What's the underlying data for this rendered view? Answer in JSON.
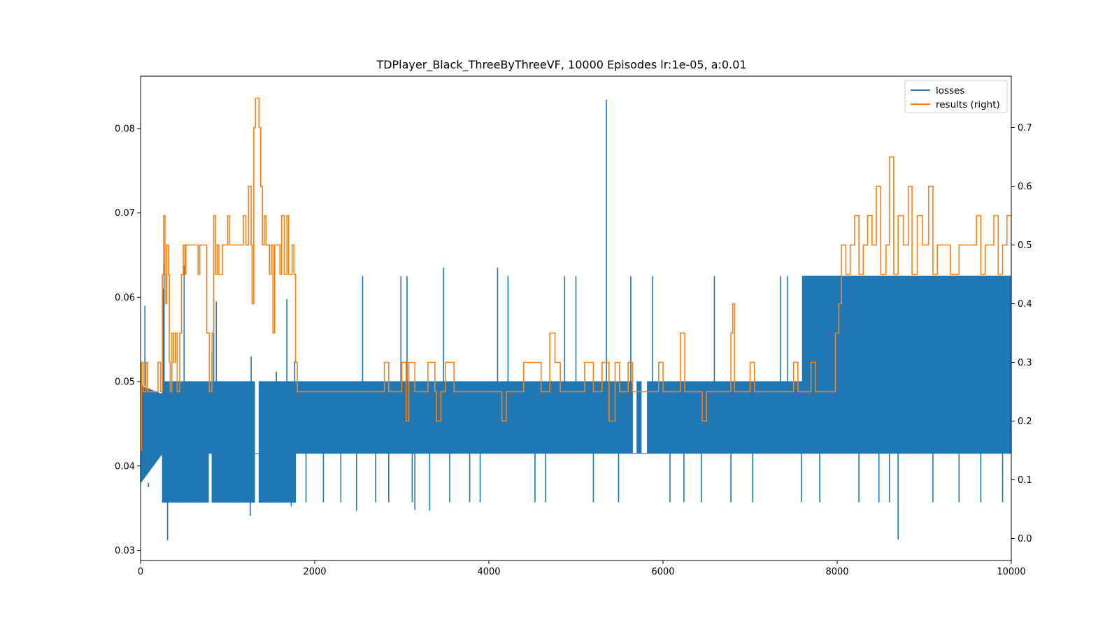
{
  "chart_data": {
    "type": "line",
    "title": "TDPlayer_Black_ThreeByThreeVF, 10000 Episodes lr:1e-05, a:0.01",
    "xlabel": "",
    "ylabel": "",
    "xlim": [
      0,
      10000
    ],
    "ylim_left": [
      0.0288,
      0.0862
    ],
    "ylim_right": [
      -0.0375,
      0.7875
    ],
    "x_ticks": [
      0,
      2000,
      4000,
      6000,
      8000,
      10000
    ],
    "y_ticks_left": [
      0.03,
      0.04,
      0.05,
      0.06,
      0.07,
      0.08
    ],
    "y_ticks_right": [
      0.0,
      0.1,
      0.2,
      0.3,
      0.4,
      0.5,
      0.6,
      0.7
    ],
    "grid": false,
    "legend_position": "upper right",
    "series": [
      {
        "name": "losses",
        "axis": "left",
        "color": "#1f77b4",
        "style": "dense-oscillation",
        "bands": [
          {
            "x": [
              0,
              250
            ],
            "low": [
              0.038,
              0.0415
            ],
            "high": [
              0.0495,
              0.0485
            ]
          },
          {
            "x": [
              250,
              780
            ],
            "low": 0.0357,
            "high": 0.05
          },
          {
            "x": [
              780,
              820
            ],
            "low": 0.0415,
            "high": 0.05
          },
          {
            "x": [
              820,
              1310
            ],
            "low": 0.0357,
            "high": 0.05
          },
          {
            "x": [
              1310,
              1360
            ],
            "low": 0.0415,
            "high": 0.0415
          },
          {
            "x": [
              1360,
              1780
            ],
            "low": 0.0357,
            "high": 0.05
          },
          {
            "x": [
              1780,
              5650
            ],
            "low": 0.0415,
            "high": 0.05
          },
          {
            "x": [
              5650,
              5700
            ],
            "low": 0.0415,
            "high": 0.0415
          },
          {
            "x": [
              5700,
              5750
            ],
            "low": 0.0415,
            "high": 0.05
          },
          {
            "x": [
              5750,
              5820
            ],
            "low": 0.0415,
            "high": 0.0415
          },
          {
            "x": [
              5820,
              7600
            ],
            "low": 0.0415,
            "high": 0.05
          },
          {
            "x": [
              7600,
              10000
            ],
            "low": 0.0415,
            "high": 0.0625
          }
        ],
        "spikes": [
          [
            50,
            0.059
          ],
          [
            90,
            0.0375
          ],
          [
            260,
            0.061
          ],
          [
            270,
            0.064
          ],
          [
            310,
            0.0312
          ],
          [
            500,
            0.0638
          ],
          [
            820,
            0.0534
          ],
          [
            840,
            0.06
          ],
          [
            870,
            0.0595
          ],
          [
            1260,
            0.0341
          ],
          [
            1270,
            0.053
          ],
          [
            1560,
            0.0512
          ],
          [
            1680,
            0.0598
          ],
          [
            1730,
            0.0352
          ],
          [
            1770,
            0.0524
          ],
          [
            1900,
            0.0357
          ],
          [
            2100,
            0.0357
          ],
          [
            2300,
            0.0357
          ],
          [
            2480,
            0.0347
          ],
          [
            2550,
            0.0625
          ],
          [
            2700,
            0.0357
          ],
          [
            2850,
            0.0357
          ],
          [
            2990,
            0.0625
          ],
          [
            3060,
            0.0625
          ],
          [
            3120,
            0.0357
          ],
          [
            3150,
            0.0348
          ],
          [
            3320,
            0.0347
          ],
          [
            3480,
            0.0635
          ],
          [
            3550,
            0.0357
          ],
          [
            3780,
            0.0357
          ],
          [
            3900,
            0.0357
          ],
          [
            4100,
            0.0635
          ],
          [
            4220,
            0.0625
          ],
          [
            4530,
            0.0357
          ],
          [
            4650,
            0.0357
          ],
          [
            4870,
            0.0625
          ],
          [
            5000,
            0.0625
          ],
          [
            5200,
            0.0357
          ],
          [
            5350,
            0.0834
          ],
          [
            5490,
            0.0357
          ],
          [
            5630,
            0.0625
          ],
          [
            5880,
            0.0625
          ],
          [
            6080,
            0.0357
          ],
          [
            6240,
            0.0357
          ],
          [
            6440,
            0.0357
          ],
          [
            6590,
            0.0625
          ],
          [
            6780,
            0.0357
          ],
          [
            7030,
            0.0357
          ],
          [
            7350,
            0.0625
          ],
          [
            7430,
            0.0625
          ],
          [
            7590,
            0.0357
          ],
          [
            7800,
            0.0357
          ],
          [
            8250,
            0.0357
          ],
          [
            8480,
            0.0357
          ],
          [
            8600,
            0.0357
          ],
          [
            8700,
            0.0313
          ],
          [
            9100,
            0.0357
          ],
          [
            9400,
            0.0357
          ],
          [
            9650,
            0.0357
          ],
          [
            9900,
            0.0357
          ]
        ]
      },
      {
        "name": "results (right)",
        "axis": "right",
        "color": "#ff7f0e",
        "style": "step",
        "points": [
          [
            0,
            0.15
          ],
          [
            10,
            0.3
          ],
          [
            30,
            0.25
          ],
          [
            60,
            0.3
          ],
          [
            80,
            0.25
          ],
          [
            200,
            0.3
          ],
          [
            230,
            0.25
          ],
          [
            250,
            0.45
          ],
          [
            265,
            0.55
          ],
          [
            280,
            0.45
          ],
          [
            290,
            0.4
          ],
          [
            300,
            0.5
          ],
          [
            320,
            0.45
          ],
          [
            330,
            0.3
          ],
          [
            340,
            0.25
          ],
          [
            360,
            0.35
          ],
          [
            380,
            0.3
          ],
          [
            400,
            0.35
          ],
          [
            420,
            0.25
          ],
          [
            450,
            0.35
          ],
          [
            470,
            0.45
          ],
          [
            490,
            0.5
          ],
          [
            510,
            0.45
          ],
          [
            520,
            0.5
          ],
          [
            660,
            0.45
          ],
          [
            680,
            0.5
          ],
          [
            760,
            0.35
          ],
          [
            790,
            0.25
          ],
          [
            820,
            0.35
          ],
          [
            840,
            0.55
          ],
          [
            860,
            0.45
          ],
          [
            880,
            0.5
          ],
          [
            900,
            0.45
          ],
          [
            940,
            0.5
          ],
          [
            1000,
            0.55
          ],
          [
            1020,
            0.5
          ],
          [
            1180,
            0.55
          ],
          [
            1210,
            0.5
          ],
          [
            1240,
            0.6
          ],
          [
            1270,
            0.5
          ],
          [
            1280,
            0.4
          ],
          [
            1300,
            0.7
          ],
          [
            1320,
            0.75
          ],
          [
            1360,
            0.7
          ],
          [
            1380,
            0.6
          ],
          [
            1400,
            0.5
          ],
          [
            1420,
            0.55
          ],
          [
            1440,
            0.5
          ],
          [
            1480,
            0.45
          ],
          [
            1500,
            0.5
          ],
          [
            1520,
            0.35
          ],
          [
            1540,
            0.5
          ],
          [
            1600,
            0.45
          ],
          [
            1620,
            0.55
          ],
          [
            1650,
            0.45
          ],
          [
            1680,
            0.55
          ],
          [
            1700,
            0.45
          ],
          [
            1740,
            0.5
          ],
          [
            1760,
            0.45
          ],
          [
            1780,
            0.3
          ],
          [
            1800,
            0.25
          ],
          [
            2800,
            0.3
          ],
          [
            2850,
            0.25
          ],
          [
            3000,
            0.3
          ],
          [
            3050,
            0.2
          ],
          [
            3080,
            0.3
          ],
          [
            3150,
            0.25
          ],
          [
            3300,
            0.3
          ],
          [
            3380,
            0.25
          ],
          [
            3400,
            0.2
          ],
          [
            3450,
            0.25
          ],
          [
            3500,
            0.3
          ],
          [
            3600,
            0.25
          ],
          [
            4150,
            0.2
          ],
          [
            4200,
            0.25
          ],
          [
            4400,
            0.3
          ],
          [
            4600,
            0.25
          ],
          [
            4700,
            0.35
          ],
          [
            4760,
            0.3
          ],
          [
            4820,
            0.25
          ],
          [
            5100,
            0.3
          ],
          [
            5200,
            0.25
          ],
          [
            5300,
            0.3
          ],
          [
            5380,
            0.2
          ],
          [
            5450,
            0.3
          ],
          [
            5500,
            0.25
          ],
          [
            5600,
            0.3
          ],
          [
            5650,
            0.25
          ],
          [
            5950,
            0.3
          ],
          [
            6000,
            0.25
          ],
          [
            6200,
            0.35
          ],
          [
            6250,
            0.25
          ],
          [
            6450,
            0.2
          ],
          [
            6500,
            0.25
          ],
          [
            6780,
            0.35
          ],
          [
            6800,
            0.4
          ],
          [
            6820,
            0.25
          ],
          [
            7000,
            0.3
          ],
          [
            7050,
            0.25
          ],
          [
            7500,
            0.3
          ],
          [
            7550,
            0.25
          ],
          [
            7700,
            0.3
          ],
          [
            7750,
            0.25
          ],
          [
            7980,
            0.35
          ],
          [
            8020,
            0.4
          ],
          [
            8050,
            0.5
          ],
          [
            8100,
            0.45
          ],
          [
            8150,
            0.5
          ],
          [
            8200,
            0.55
          ],
          [
            8250,
            0.45
          ],
          [
            8300,
            0.5
          ],
          [
            8350,
            0.55
          ],
          [
            8400,
            0.5
          ],
          [
            8450,
            0.6
          ],
          [
            8500,
            0.45
          ],
          [
            8560,
            0.5
          ],
          [
            8600,
            0.65
          ],
          [
            8650,
            0.45
          ],
          [
            8700,
            0.55
          ],
          [
            8760,
            0.5
          ],
          [
            8820,
            0.6
          ],
          [
            8860,
            0.45
          ],
          [
            8920,
            0.55
          ],
          [
            8980,
            0.5
          ],
          [
            9050,
            0.6
          ],
          [
            9100,
            0.45
          ],
          [
            9150,
            0.5
          ],
          [
            9300,
            0.45
          ],
          [
            9400,
            0.5
          ],
          [
            9600,
            0.55
          ],
          [
            9650,
            0.45
          ],
          [
            9700,
            0.5
          ],
          [
            9800,
            0.55
          ],
          [
            9850,
            0.45
          ],
          [
            9900,
            0.5
          ],
          [
            9950,
            0.55
          ],
          [
            10000,
            0.45
          ]
        ]
      }
    ]
  }
}
